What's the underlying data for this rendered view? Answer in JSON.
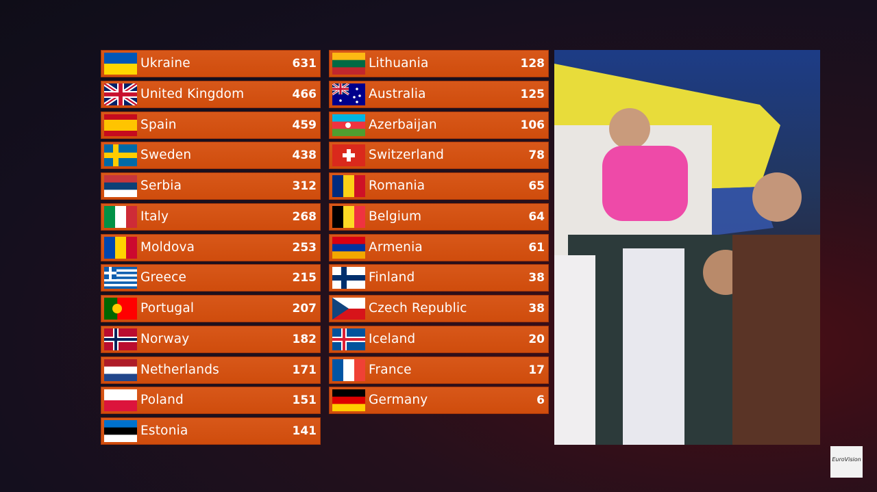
{
  "scoreboard": {
    "left": [
      {
        "country": "Ukraine",
        "points": "631"
      },
      {
        "country": "United Kingdom",
        "points": "466"
      },
      {
        "country": "Spain",
        "points": "459"
      },
      {
        "country": "Sweden",
        "points": "438"
      },
      {
        "country": "Serbia",
        "points": "312"
      },
      {
        "country": "Italy",
        "points": "268"
      },
      {
        "country": "Moldova",
        "points": "253"
      },
      {
        "country": "Greece",
        "points": "215"
      },
      {
        "country": "Portugal",
        "points": "207"
      },
      {
        "country": "Norway",
        "points": "182"
      },
      {
        "country": "Netherlands",
        "points": "171"
      },
      {
        "country": "Poland",
        "points": "151"
      },
      {
        "country": "Estonia",
        "points": "141"
      }
    ],
    "right": [
      {
        "country": "Lithuania",
        "points": "128"
      },
      {
        "country": "Australia",
        "points": "125"
      },
      {
        "country": "Azerbaijan",
        "points": "106"
      },
      {
        "country": "Switzerland",
        "points": "78"
      },
      {
        "country": "Romania",
        "points": "65"
      },
      {
        "country": "Belgium",
        "points": "64"
      },
      {
        "country": "Armenia",
        "points": "61"
      },
      {
        "country": "Finland",
        "points": "38"
      },
      {
        "country": "Czech Republic",
        "points": "38"
      },
      {
        "country": "Iceland",
        "points": "20"
      },
      {
        "country": "France",
        "points": "17"
      },
      {
        "country": "Germany",
        "points": "6"
      }
    ]
  },
  "logo": "EuroVision"
}
